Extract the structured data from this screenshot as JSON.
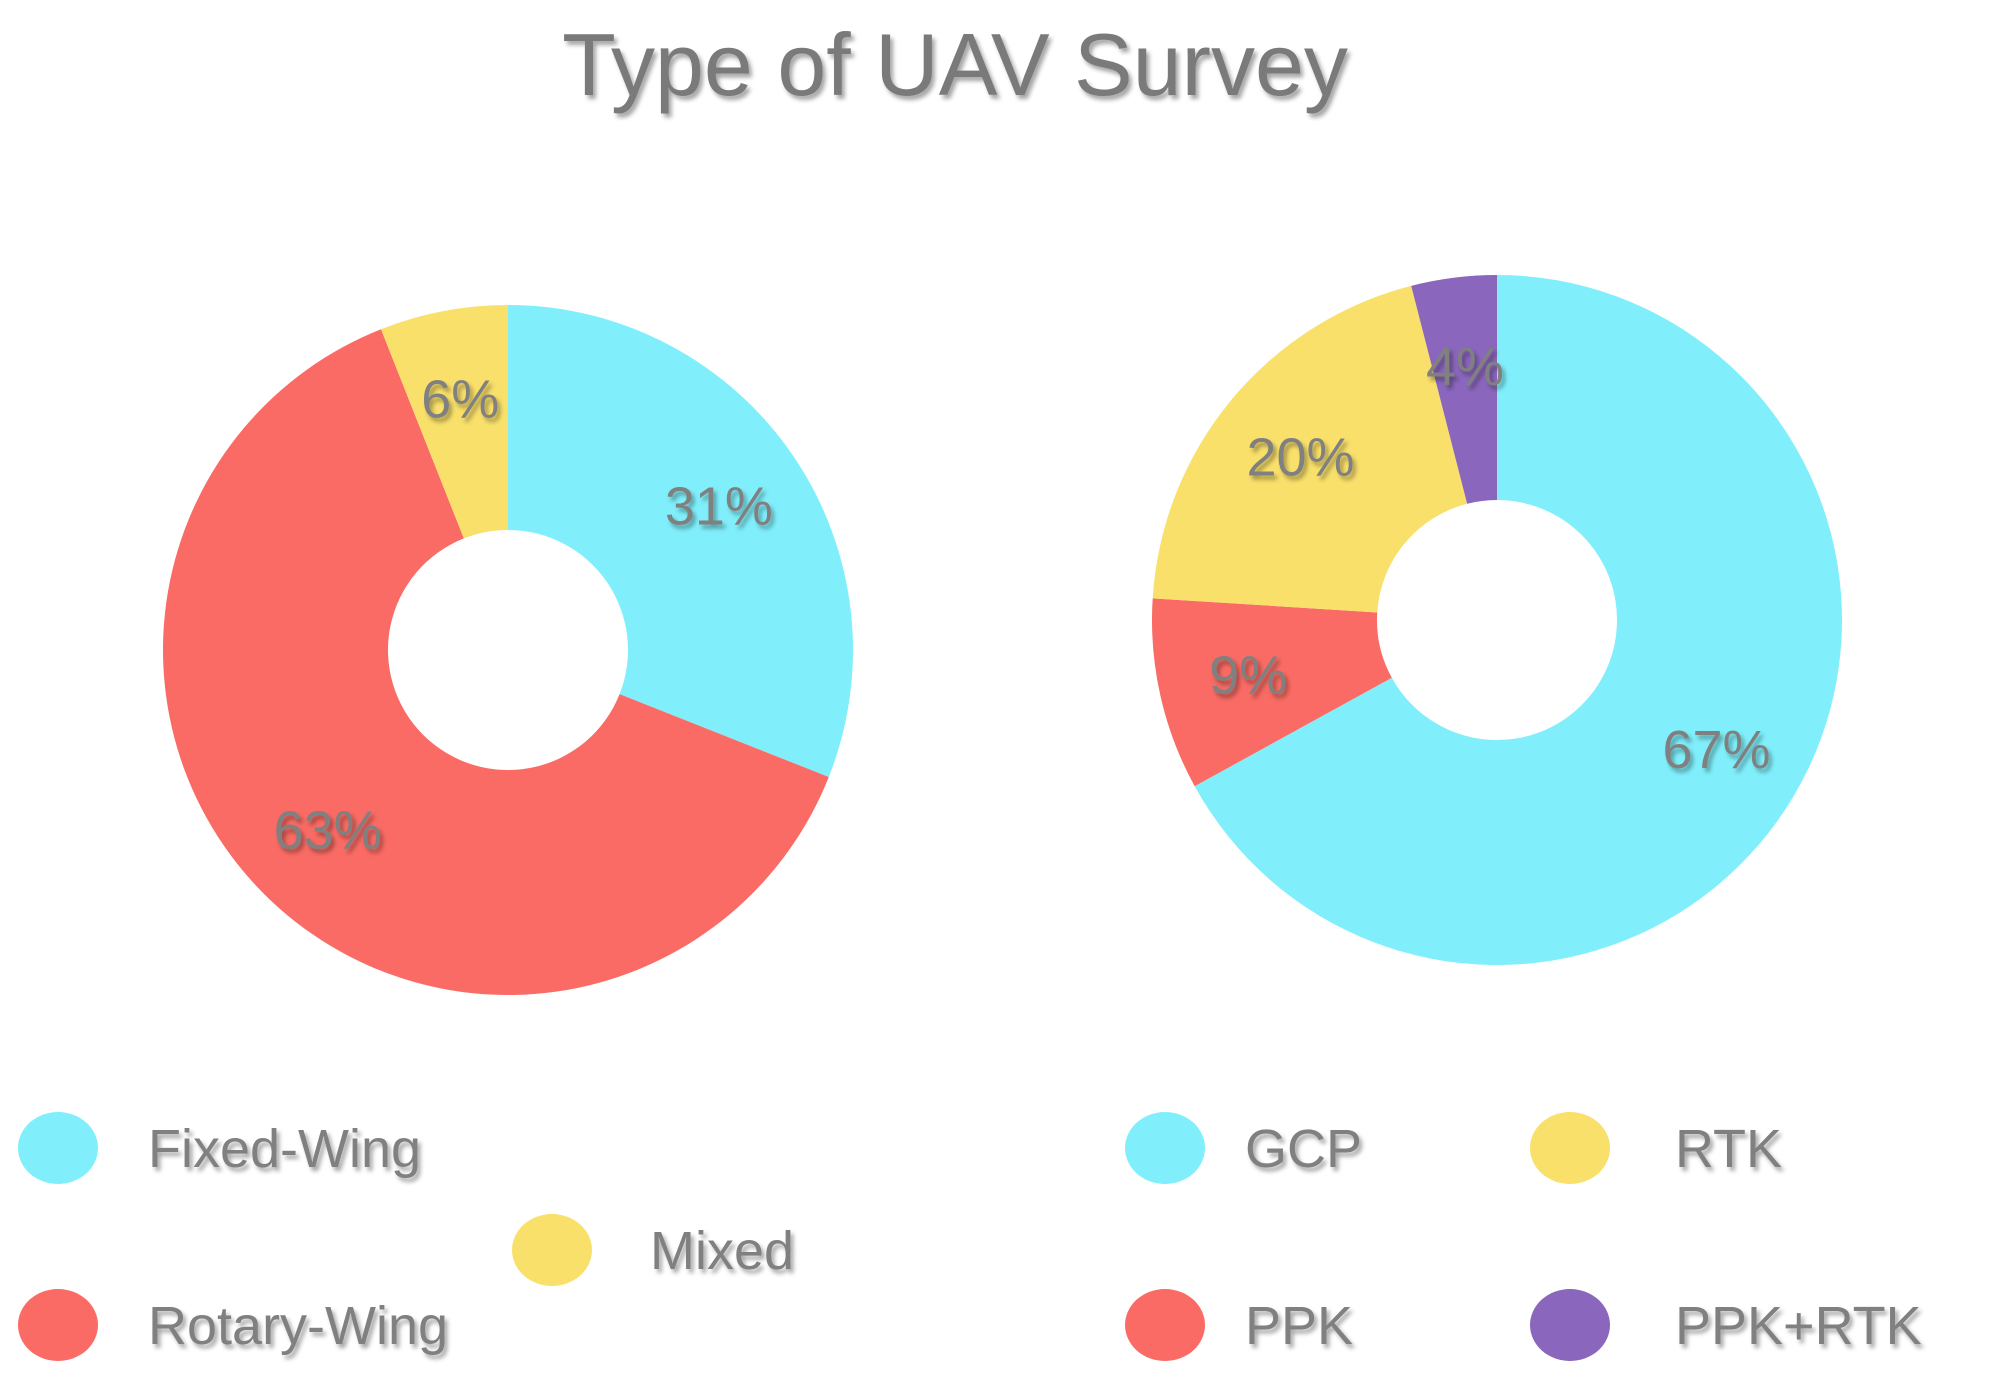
{
  "chart_data": {
    "title": "Type of UAV Survey",
    "charts": [
      {
        "type": "pie",
        "categories": [
          "Fixed-Wing",
          "Rotary-Wing",
          "Mixed"
        ],
        "values": [
          31,
          63,
          6
        ],
        "value_labels": [
          "31%",
          "63%",
          "6%"
        ],
        "colors": [
          "#80EFFB",
          "#F96B64",
          "#F9E06B"
        ],
        "donut": true,
        "legend_position": "bottom"
      },
      {
        "type": "pie",
        "categories": [
          "GCP",
          "PPK",
          "RTK",
          "PPK+RTK"
        ],
        "values": [
          67,
          9,
          20,
          4
        ],
        "value_labels": [
          "67%",
          "9%",
          "20%",
          "4%"
        ],
        "colors": [
          "#80EFFB",
          "#F96B64",
          "#F9E06B",
          "#8A66BC"
        ],
        "donut": true,
        "legend_position": "bottom"
      }
    ]
  }
}
